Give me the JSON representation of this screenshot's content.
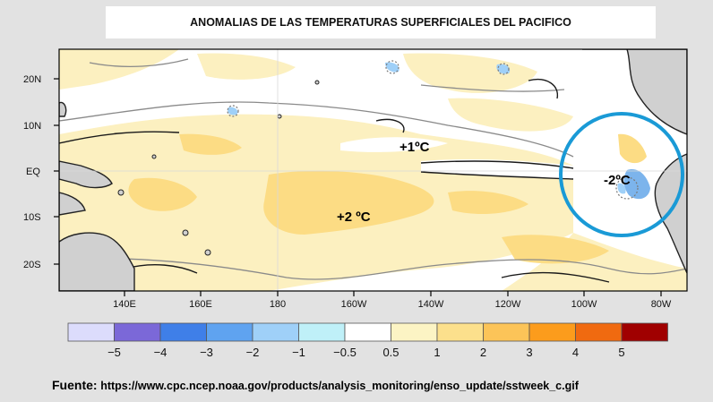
{
  "title": "ANOMALIAS DE LAS TEMPERATURAS SUPERFICIALES DEL PACIFICO",
  "lat_labels": [
    "20N",
    "10N",
    "EQ",
    "10S",
    "20S"
  ],
  "lon_labels": [
    "140E",
    "160E",
    "180",
    "160W",
    "140W",
    "120W",
    "100W",
    "80W"
  ],
  "annotations": {
    "plus1": "+1ºC",
    "plus2": "+2 ºC",
    "minus2": "-2ºC"
  },
  "colorbar": {
    "colors": [
      "#dcdcfc",
      "#7b68d8",
      "#3f7fe8",
      "#5fa3f0",
      "#9fd0f8",
      "#bff0f8",
      "#ffffff",
      "#fcf4c4",
      "#fce08c",
      "#fcc458",
      "#fc9c1c",
      "#f06a10",
      "#a00000"
    ],
    "labels": [
      "−5",
      "−4",
      "−3",
      "−2",
      "−1",
      "−0.5",
      "0.5",
      "1",
      "2",
      "3",
      "4",
      "5"
    ]
  },
  "source": {
    "label": "Fuente:",
    "url": "https://www.cpc.ncep.noaa.gov/products/analysis_monitoring/enso_update/sstweek_c.gif"
  },
  "colors": {
    "warm_light": "#fcf0c0",
    "warm_mid": "#fcdc84",
    "cool": "#7cb4ec",
    "land": "#d0d0d0",
    "circle": "#1a9ad6"
  }
}
